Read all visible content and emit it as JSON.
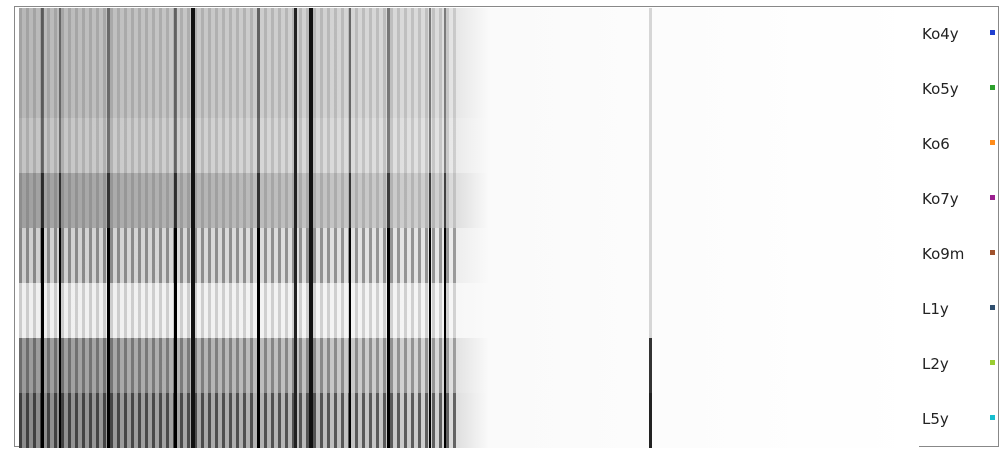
{
  "lanes": [
    {
      "label": "Ko4y",
      "color": "#1f3fd0"
    },
    {
      "label": "Ko5y",
      "color": "#2ca02c"
    },
    {
      "label": "Ko6",
      "color": "#ff8c1a"
    },
    {
      "label": "Ko7y",
      "color": "#9b1f8f"
    },
    {
      "label": "Ko9m",
      "color": "#a0522d"
    },
    {
      "label": "L1y",
      "color": "#2f4f6f"
    },
    {
      "label": "L2y",
      "color": "#9acd32"
    },
    {
      "label": "L5y",
      "color": "#17becf"
    }
  ]
}
